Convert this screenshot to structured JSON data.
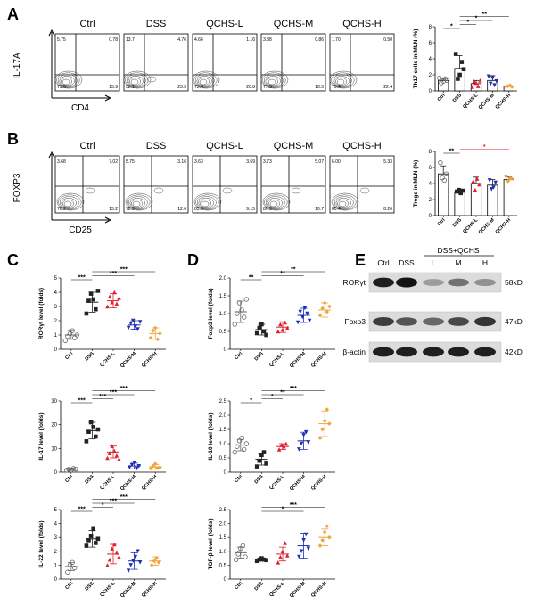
{
  "panels": [
    "A",
    "B",
    "C",
    "D",
    "E"
  ],
  "flow": [
    {
      "id": "A",
      "titles": [
        "Ctrl",
        "DSS",
        "QCHS-L",
        "QCHS-M",
        "QCHS-H"
      ],
      "y_label": "IL-17A",
      "x_label": "CD4",
      "quadrants": [
        [
          "5.75",
          "0.78",
          "79.6",
          "13.9"
        ],
        [
          "13.7",
          "4.76",
          "58.1",
          "23.5"
        ],
        [
          "4.66",
          "1.16",
          "73.4",
          "20.8"
        ],
        [
          "3.38",
          "0.86",
          "77.3",
          "18.5"
        ],
        [
          "1.70",
          "0.50",
          "75.4",
          "22.4"
        ]
      ]
    },
    {
      "id": "B",
      "titles": [
        "Ctrl",
        "DSS",
        "QCHS-L",
        "QCHS-M",
        "QCHS-H"
      ],
      "y_label": "FOXP3",
      "x_label": "CD25",
      "quadrants": [
        [
          "3.68",
          "7.02",
          "76.2",
          "13.2"
        ],
        [
          "5.75",
          "3.16",
          "78.5",
          "12.6"
        ],
        [
          "3.63",
          "3.69",
          "83.5",
          "9.15"
        ],
        [
          "3.73",
          "5.07",
          "80.5",
          "10.7"
        ],
        [
          "6.00",
          "5.33",
          "80.4",
          "8.26"
        ]
      ]
    }
  ],
  "groups": [
    "Ctrl",
    "DSS",
    "QCHS-L",
    "QCHS-M",
    "QCHS-H"
  ],
  "colors": {
    "Ctrl": "#666666",
    "DSS": "#222222",
    "QCHS-L": "#e0202e",
    "QCHS-M": "#1f2fb4",
    "QCHS-H": "#f0a43a"
  },
  "chart_data": [
    {
      "type": "bar",
      "panel": "A",
      "ylabel": "Th17 cells in MLN (%)",
      "categories": [
        "Ctrl",
        "DSS",
        "QCHS-L",
        "QCHS-M",
        "QCHS-H"
      ],
      "values": [
        1.3,
        2.8,
        0.9,
        1.3,
        0.6
      ],
      "errors": [
        0.25,
        1.6,
        0.4,
        0.6,
        0.08
      ],
      "ylim": [
        0,
        8
      ],
      "yticks": [
        "0",
        "2",
        "4",
        "6",
        "8"
      ],
      "points": [
        [
          1.6,
          1.0,
          1.2,
          1.5,
          1.3
        ],
        [
          4.6,
          1.5,
          2.0,
          3.6,
          2.7
        ],
        [
          0.5,
          1.2,
          1.0,
          0.6,
          1.3
        ],
        [
          1.8,
          0.9,
          1.6,
          0.7,
          1.2
        ],
        [
          0.55,
          0.6,
          0.7,
          0.5
        ]
      ],
      "sig": [
        {
          "from": 0,
          "to": 1,
          "label": "*",
          "level": 0
        },
        {
          "from": 1,
          "to": 2,
          "label": "*",
          "level": 1
        },
        {
          "from": 1,
          "to": 3,
          "label": "*",
          "level": 2
        },
        {
          "from": 1,
          "to": 4,
          "label": "**",
          "level": 3
        }
      ]
    },
    {
      "type": "bar",
      "panel": "B",
      "ylabel": "Tregs in MLN (%)",
      "categories": [
        "Ctrl",
        "DSS",
        "QCHS-L",
        "QCHS-M",
        "QCHS-H"
      ],
      "values": [
        5.2,
        3.0,
        4.0,
        3.8,
        4.5
      ],
      "errors": [
        1.0,
        0.3,
        0.8,
        0.7,
        0.3
      ],
      "ylim": [
        0,
        8
      ],
      "yticks": [
        "0",
        "2",
        "4",
        "6",
        "8"
      ],
      "points": [
        [
          6.6,
          4.7,
          4.4,
          5.2
        ],
        [
          3.0,
          3.2,
          2.8,
          3.1
        ],
        [
          4.3,
          3.2,
          4.6,
          3.9
        ],
        [
          4.4,
          3.3,
          3.5,
          4.1
        ],
        [
          4.9,
          4.3,
          4.6,
          4.6
        ]
      ],
      "sig": [
        {
          "from": 0,
          "to": 1,
          "label": "**",
          "level": 0
        },
        {
          "from": 1,
          "to": 4,
          "label": "*",
          "level": 1,
          "color": "#e0202e"
        }
      ]
    },
    {
      "type": "scatter",
      "panel": "C",
      "ylabel": "RORγt level (folds)",
      "categories": [
        "Ctrl",
        "DSS",
        "QCHS-L",
        "QCHS-M",
        "QCHS-H"
      ],
      "ylim": [
        0,
        5
      ],
      "yticks": [
        "0",
        "1",
        "2",
        "3",
        "4",
        "5"
      ],
      "means": [
        1.0,
        3.3,
        3.4,
        1.7,
        1.1
      ],
      "sds": [
        0.3,
        0.7,
        0.5,
        0.3,
        0.4
      ],
      "points": [
        [
          0.6,
          0.9,
          1.1,
          1.3,
          0.8,
          1.0
        ],
        [
          2.5,
          3.4,
          3.9,
          3.5,
          2.8,
          4.1
        ],
        [
          3.0,
          3.7,
          3.3,
          4.0,
          3.2,
          3.6
        ],
        [
          1.5,
          1.8,
          2.0,
          1.6,
          1.4,
          1.9
        ],
        [
          0.8,
          1.3,
          1.5,
          0.7,
          1.1
        ]
      ],
      "sig": [
        {
          "from": 0,
          "to": 1,
          "label": "***",
          "level": 0
        },
        {
          "from": 1,
          "to": 3,
          "label": "***",
          "level": 1
        },
        {
          "from": 1,
          "to": 4,
          "label": "***",
          "level": 2
        }
      ]
    },
    {
      "type": "scatter",
      "panel": "C",
      "ylabel": "IL-17 level (folds)",
      "categories": [
        "Ctrl",
        "DSS",
        "QCHS-L",
        "QCHS-M",
        "QCHS-H"
      ],
      "ylim": [
        0,
        30
      ],
      "yticks": [
        "0",
        "10",
        "20",
        "30"
      ],
      "means": [
        1.2,
        17.5,
        8.5,
        2.6,
        2.2
      ],
      "sds": [
        0.5,
        3.5,
        2.5,
        1.2,
        1.0
      ],
      "points": [
        [
          0.8,
          1.2,
          0.9,
          1.5,
          1.3
        ],
        [
          13,
          17,
          21,
          19,
          15,
          18
        ],
        [
          6,
          8,
          11,
          9,
          7,
          5.5
        ],
        [
          2,
          3,
          4,
          1.5,
          2.5
        ],
        [
          1.5,
          2.5,
          3.5,
          1.8,
          2.0
        ]
      ],
      "sig": [
        {
          "from": 0,
          "to": 1,
          "label": "***",
          "level": 0
        },
        {
          "from": 1,
          "to": 2,
          "label": "***",
          "level": 1
        },
        {
          "from": 1,
          "to": 3,
          "label": "***",
          "level": 2
        },
        {
          "from": 1,
          "to": 4,
          "label": "***",
          "level": 3
        }
      ]
    },
    {
      "type": "scatter",
      "panel": "C",
      "ylabel": "IL-22 level (folds)",
      "categories": [
        "Ctrl",
        "DSS",
        "QCHS-L",
        "QCHS-M",
        "QCHS-H"
      ],
      "ylim": [
        0,
        5
      ],
      "yticks": [
        "0",
        "1",
        "2",
        "3",
        "4",
        "5"
      ],
      "means": [
        0.9,
        2.9,
        1.8,
        1.3,
        1.3
      ],
      "sds": [
        0.3,
        0.6,
        0.7,
        0.6,
        0.3
      ],
      "points": [
        [
          0.5,
          1.0,
          1.2,
          0.8
        ],
        [
          2.4,
          2.8,
          3.1,
          3.6,
          2.6,
          2.9
        ],
        [
          1.0,
          1.4,
          2.2,
          2.5,
          1.9,
          1.6
        ],
        [
          0.6,
          1.0,
          1.3,
          1.6,
          2.0,
          1.2
        ],
        [
          1.0,
          1.3,
          1.5,
          1.2
        ]
      ],
      "sig": [
        {
          "from": 0,
          "to": 1,
          "label": "***",
          "level": 0
        },
        {
          "from": 1,
          "to": 2,
          "label": "*",
          "level": 1
        },
        {
          "from": 1,
          "to": 3,
          "label": "***",
          "level": 2
        },
        {
          "from": 1,
          "to": 4,
          "label": "***",
          "level": 3
        }
      ]
    },
    {
      "type": "scatter",
      "panel": "D",
      "ylabel": "Foxp3 level (folds)",
      "categories": [
        "Ctrl",
        "DSS",
        "QCHS-L",
        "QCHS-M",
        "QCHS-H"
      ],
      "ylim": [
        0,
        2.0
      ],
      "yticks": [
        "0",
        "0.5",
        "1.0",
        "1.5",
        "2.0"
      ],
      "means": [
        1.05,
        0.55,
        0.62,
        0.95,
        1.1
      ],
      "sds": [
        0.3,
        0.15,
        0.15,
        0.2,
        0.2
      ],
      "points": [
        [
          0.7,
          1.0,
          1.3,
          1.1,
          0.9,
          1.4
        ],
        [
          0.45,
          0.6,
          0.7,
          0.5,
          0.4
        ],
        [
          0.5,
          0.7,
          0.55,
          0.75,
          0.6
        ],
        [
          0.75,
          1.05,
          0.9,
          1.15,
          1.0,
          0.8
        ],
        [
          0.95,
          1.15,
          1.3,
          1.05,
          1.2
        ]
      ],
      "sig": [
        {
          "from": 0,
          "to": 1,
          "label": "**",
          "level": 0
        },
        {
          "from": 1,
          "to": 3,
          "label": "**",
          "level": 1
        },
        {
          "from": 1,
          "to": 4,
          "label": "**",
          "level": 2
        }
      ]
    },
    {
      "type": "scatter",
      "panel": "D",
      "ylabel": "IL-10 level (folds)",
      "categories": [
        "Ctrl",
        "DSS",
        "QCHS-L",
        "QCHS-M",
        "QCHS-H"
      ],
      "ylim": [
        0,
        2.5
      ],
      "yticks": [
        "0",
        "0.5",
        "1.0",
        "1.5",
        "2.0",
        "2.5"
      ],
      "means": [
        0.95,
        0.45,
        0.9,
        1.1,
        1.7
      ],
      "sds": [
        0.2,
        0.2,
        0.1,
        0.3,
        0.45
      ],
      "points": [
        [
          0.7,
          0.9,
          1.1,
          1.2,
          0.8,
          1.0
        ],
        [
          0.2,
          0.4,
          0.6,
          0.7,
          0.3
        ],
        [
          0.8,
          0.95,
          0.9,
          1.0
        ],
        [
          0.8,
          1.0,
          1.3,
          1.4,
          1.05
        ],
        [
          1.2,
          1.5,
          1.8,
          2.2,
          1.7
        ]
      ],
      "sig": [
        {
          "from": 0,
          "to": 1,
          "label": "*",
          "level": 0
        },
        {
          "from": 1,
          "to": 2,
          "label": "*",
          "level": 1
        },
        {
          "from": 1,
          "to": 3,
          "label": "**",
          "level": 2
        },
        {
          "from": 1,
          "to": 4,
          "label": "***",
          "level": 3
        }
      ]
    },
    {
      "type": "scatter",
      "panel": "D",
      "ylabel": "TGF-β level (folds)",
      "categories": [
        "Ctrl",
        "DSS",
        "QCHS-L",
        "QCHS-M",
        "QCHS-H"
      ],
      "ylim": [
        0,
        2.5
      ],
      "yticks": [
        "0",
        "0.5",
        "1.0",
        "1.5",
        "2.0",
        "2.5"
      ],
      "means": [
        0.95,
        0.7,
        0.9,
        1.2,
        1.5
      ],
      "sds": [
        0.2,
        0.05,
        0.25,
        0.45,
        0.3
      ],
      "points": [
        [
          0.7,
          0.9,
          1.1,
          1.2,
          0.8
        ],
        [
          0.65,
          0.7,
          0.75,
          0.7,
          0.68
        ],
        [
          0.6,
          0.8,
          1.0,
          1.3,
          0.85
        ],
        [
          0.8,
          1.0,
          1.4,
          1.6,
          1.1
        ],
        [
          1.2,
          1.4,
          1.7,
          1.9,
          1.5
        ]
      ],
      "sig": [
        {
          "from": 1,
          "to": 3,
          "label": "*",
          "level": 0
        },
        {
          "from": 1,
          "to": 4,
          "label": "***",
          "level": 1
        }
      ]
    }
  ],
  "western": {
    "lanes": [
      "Ctrl",
      "DSS",
      "L",
      "M",
      "H"
    ],
    "treat_label": "DSS+QCHS",
    "rows": [
      {
        "name": "RORγt",
        "size": "58kD",
        "intensity": [
          0.95,
          1.0,
          0.35,
          0.55,
          0.4
        ]
      },
      {
        "name": "Foxp3",
        "size": "47kD",
        "intensity": [
          0.8,
          0.7,
          0.6,
          0.75,
          0.85
        ]
      },
      {
        "name": "β-actin",
        "size": "42kD",
        "intensity": [
          0.95,
          0.95,
          0.95,
          0.95,
          0.95
        ]
      }
    ]
  }
}
